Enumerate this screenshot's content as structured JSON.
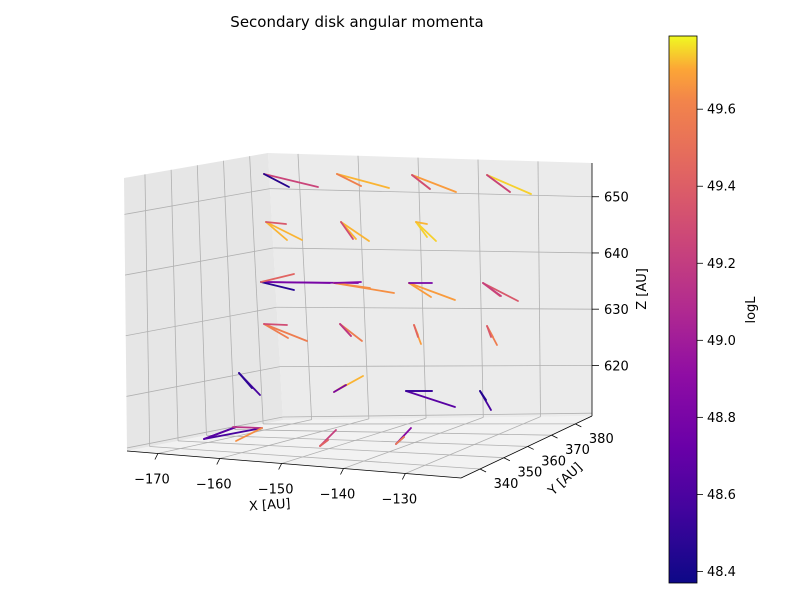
{
  "chart_data": {
    "type": "quiver3d",
    "title": "Secondary disk angular momenta",
    "xlabel": "X [AU]",
    "ylabel": "Y [AU]",
    "zlabel": "Z [AU]",
    "xticks": [
      -170,
      -160,
      -150,
      -140,
      -130
    ],
    "yticks": [
      340,
      350,
      360,
      370,
      380
    ],
    "zticks": [
      620,
      630,
      640,
      650
    ],
    "colorbar": {
      "label": "logL",
      "colormap": "plasma",
      "min": 48.37,
      "max": 49.79,
      "ticks": [
        "48.4",
        "48.6",
        "48.8",
        "49.0",
        "49.2",
        "49.4",
        "49.6"
      ]
    },
    "grid": true,
    "arrows_screen_note": "arrow placement is layout and lives in the drawing script"
  }
}
